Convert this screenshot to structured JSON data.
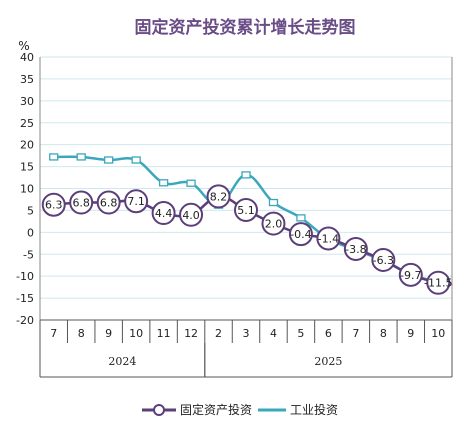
{
  "chart_data": {
    "type": "line",
    "title": "固定资产投资累计增长走势图",
    "unit": "%",
    "categories": [
      "7",
      "8",
      "9",
      "10",
      "11",
      "12",
      "2",
      "3",
      "4",
      "5",
      "6",
      "7",
      "8",
      "9",
      "10"
    ],
    "year_groups": [
      {
        "label": "2024",
        "start": 0,
        "end": 5
      },
      {
        "label": "2025",
        "start": 6,
        "end": 14
      }
    ],
    "ylim": [
      -20,
      40
    ],
    "yticks": [
      -20,
      -15,
      -10,
      -5,
      0,
      5,
      10,
      15,
      20,
      25,
      30,
      35,
      40
    ],
    "grid": true,
    "legend_position": "bottom",
    "series": [
      {
        "name": "固定资产投资",
        "color": "#5b3e7a",
        "marker": "circle",
        "values": [
          6.3,
          6.8,
          6.8,
          7.1,
          4.4,
          4.0,
          8.2,
          5.1,
          2.0,
          -0.4,
          -1.4,
          -3.8,
          -6.3,
          -9.7,
          -11.5
        ],
        "labels": [
          "6.3",
          "6.8",
          "6.8",
          "7.1",
          "4.4",
          "4.0",
          "8.2",
          "5.1",
          "2.0",
          "-0.4",
          "-1.4",
          "-3.8",
          "-6.3",
          "-9.7",
          "-11.5"
        ]
      },
      {
        "name": "工业投资",
        "color": "#3aa7bd",
        "marker": "square",
        "values": [
          17.2,
          17.2,
          16.5,
          16.5,
          11.3,
          11.2,
          6.2,
          13.1,
          6.8,
          3.3,
          -1.5,
          -4.0,
          -6.5,
          -9.5,
          -11.5
        ]
      }
    ]
  }
}
